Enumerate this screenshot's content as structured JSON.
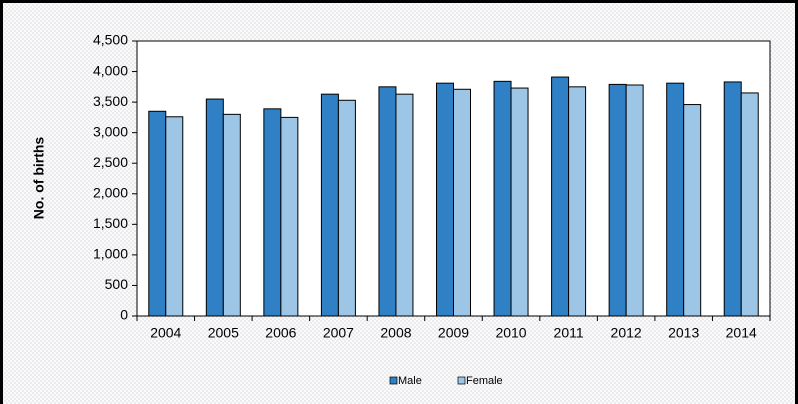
{
  "chart_data": {
    "type": "bar",
    "y_label": "No. of births",
    "categories": [
      "2004",
      "2005",
      "2006",
      "2007",
      "2008",
      "2009",
      "2010",
      "2011",
      "2012",
      "2013",
      "2014"
    ],
    "series": [
      {
        "name": "Male",
        "color": "#2f80c4",
        "values": [
          3350,
          3550,
          3390,
          3630,
          3750,
          3810,
          3840,
          3910,
          3790,
          3810,
          3830
        ]
      },
      {
        "name": "Female",
        "color": "#9dc6e6",
        "values": [
          3260,
          3300,
          3250,
          3530,
          3630,
          3710,
          3730,
          3750,
          3780,
          3460,
          3650
        ]
      }
    ],
    "ylim": [
      0,
      4500
    ],
    "yticks": [
      0,
      500,
      {
        "value": 1000,
        "label": "1,000"
      },
      {
        "value": 1500,
        "label": "1,500"
      },
      {
        "value": 2000,
        "label": "2,000"
      },
      {
        "value": 2500,
        "label": "2,500"
      },
      {
        "value": 3000,
        "label": "3,000"
      },
      {
        "value": 3500,
        "label": "3,500"
      },
      {
        "value": 4000,
        "label": "4,000"
      },
      {
        "value": 4500,
        "label": "4,500"
      }
    ],
    "legend": "bottom"
  }
}
